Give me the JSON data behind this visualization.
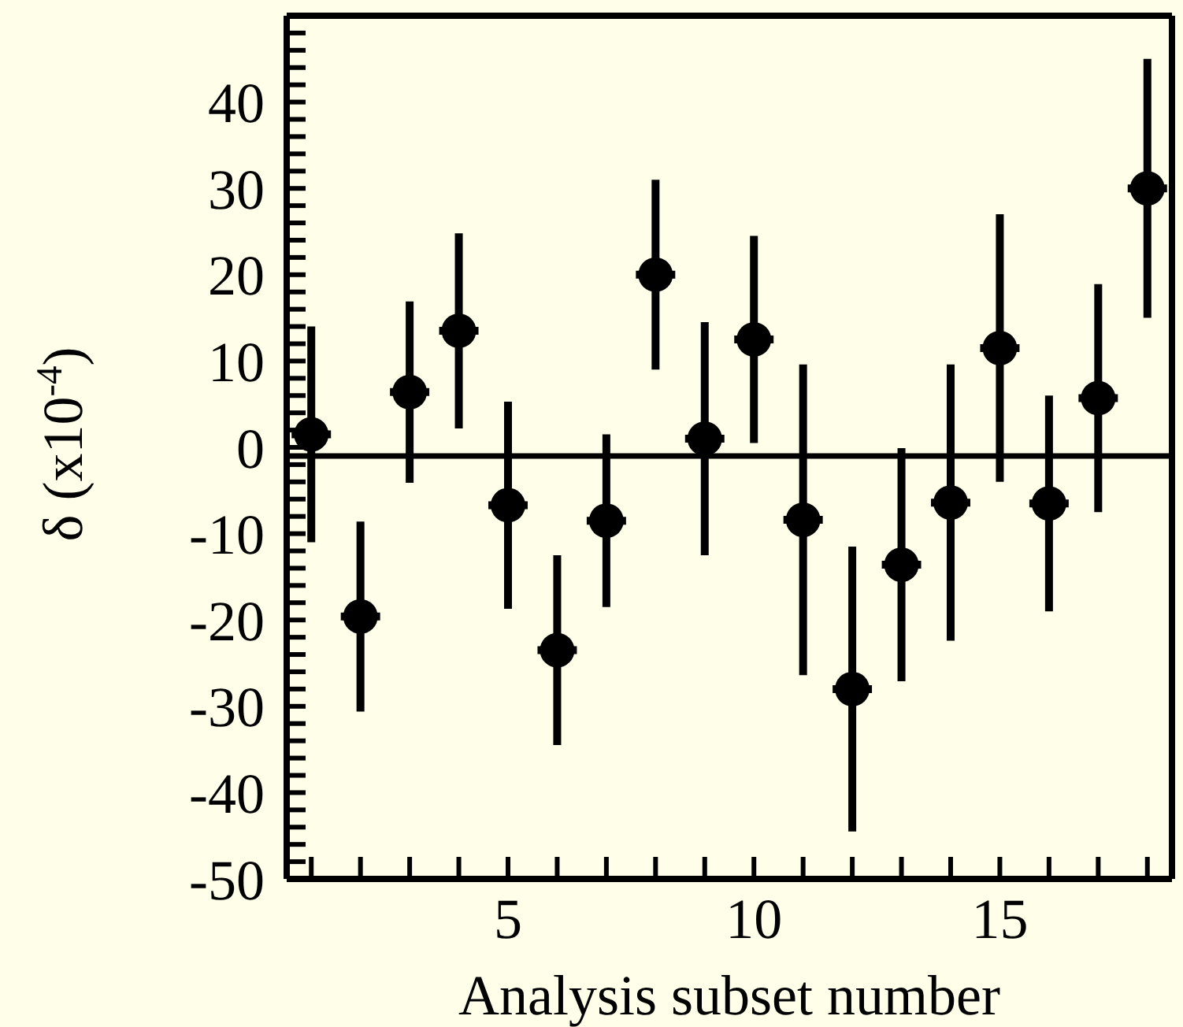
{
  "chart_data": {
    "type": "scatter",
    "xlabel": "Analysis subset number",
    "ylabel": "δ (x10$^{-4}$)",
    "x": [
      1,
      2,
      3,
      4,
      5,
      6,
      7,
      8,
      9,
      10,
      11,
      12,
      13,
      14,
      15,
      16,
      17,
      18
    ],
    "series": [
      {
        "color": "#000000",
        "values": [
          1.5,
          -19.6,
          6.4,
          13.5,
          -6.7,
          -23.5,
          -8.5,
          20,
          1,
          12.5,
          -8.4,
          -28,
          -13.6,
          -6.4,
          11.5,
          -6.5,
          5.7,
          30
        ],
        "errors": [
          12.5,
          11,
          10.5,
          11.3,
          12,
          11,
          10,
          11,
          13.5,
          12,
          18,
          16.5,
          13.5,
          16,
          15.5,
          12.5,
          13.2,
          15
        ],
        "xerrors": [
          0.4,
          0.4,
          0.4,
          0.4,
          0.4,
          0.4,
          0.4,
          0.4,
          0.4,
          0.4,
          0.4,
          0.4,
          0.4,
          0.4,
          0.4,
          0.4,
          0.4,
          0.4
        ]
      }
    ],
    "marker": "circle",
    "grid": false,
    "legend": false,
    "xlim": [
      0.5,
      18.5
    ],
    "xticks": [
      {
        "value": 1,
        "label": null
      },
      {
        "value": 2,
        "label": null
      },
      {
        "value": 3,
        "label": null
      },
      {
        "value": 4,
        "label": null
      },
      5,
      {
        "value": 6,
        "label": null
      },
      {
        "value": 7,
        "label": null
      },
      {
        "value": 8,
        "label": null
      },
      {
        "value": 9,
        "label": null
      },
      10,
      {
        "value": 11,
        "label": null
      },
      {
        "value": 12,
        "label": null
      },
      {
        "value": 13,
        "label": null
      },
      {
        "value": 14,
        "label": null
      },
      15,
      {
        "value": 16,
        "label": null
      },
      {
        "value": 17,
        "label": null
      },
      {
        "value": 18,
        "label": null
      }
    ],
    "ylim": [
      -50,
      50
    ],
    "yticks": [
      -50,
      {
        "value": -48,
        "label": null
      },
      {
        "value": -46,
        "label": null
      },
      {
        "value": -44,
        "label": null
      },
      {
        "value": -42,
        "label": null
      },
      -40,
      {
        "value": -38,
        "label": null
      },
      {
        "value": -36,
        "label": null
      },
      {
        "value": -34,
        "label": null
      },
      {
        "value": -32,
        "label": null
      },
      -30,
      {
        "value": -28,
        "label": null
      },
      {
        "value": -26,
        "label": null
      },
      {
        "value": -24,
        "label": null
      },
      {
        "value": -22,
        "label": null
      },
      -20,
      {
        "value": -18,
        "label": null
      },
      {
        "value": -16,
        "label": null
      },
      {
        "value": -14,
        "label": null
      },
      {
        "value": -12,
        "label": null
      },
      -10,
      {
        "value": -8,
        "label": null
      },
      {
        "value": -6,
        "label": null
      },
      {
        "value": -4,
        "label": null
      },
      {
        "value": -2,
        "label": null
      },
      0,
      {
        "value": 2,
        "label": null
      },
      {
        "value": 4,
        "label": null
      },
      {
        "value": 6,
        "label": null
      },
      {
        "value": 8,
        "label": null
      },
      10,
      {
        "value": 12,
        "label": null
      },
      {
        "value": 14,
        "label": null
      },
      {
        "value": 16,
        "label": null
      },
      {
        "value": 18,
        "label": null
      },
      20,
      {
        "value": 22,
        "label": null
      },
      {
        "value": 24,
        "label": null
      },
      {
        "value": 26,
        "label": null
      },
      {
        "value": 28,
        "label": null
      },
      30,
      {
        "value": 32,
        "label": null
      },
      {
        "value": 34,
        "label": null
      },
      {
        "value": 36,
        "label": null
      },
      {
        "value": 38,
        "label": null
      },
      40,
      {
        "value": 42,
        "label": null
      },
      {
        "value": 44,
        "label": null
      },
      {
        "value": 46,
        "label": null
      },
      {
        "value": 48,
        "label": null
      }
    ],
    "ref_lines": [
      {
        "axis": "y",
        "value": -1,
        "color": "#000000"
      }
    ]
  }
}
